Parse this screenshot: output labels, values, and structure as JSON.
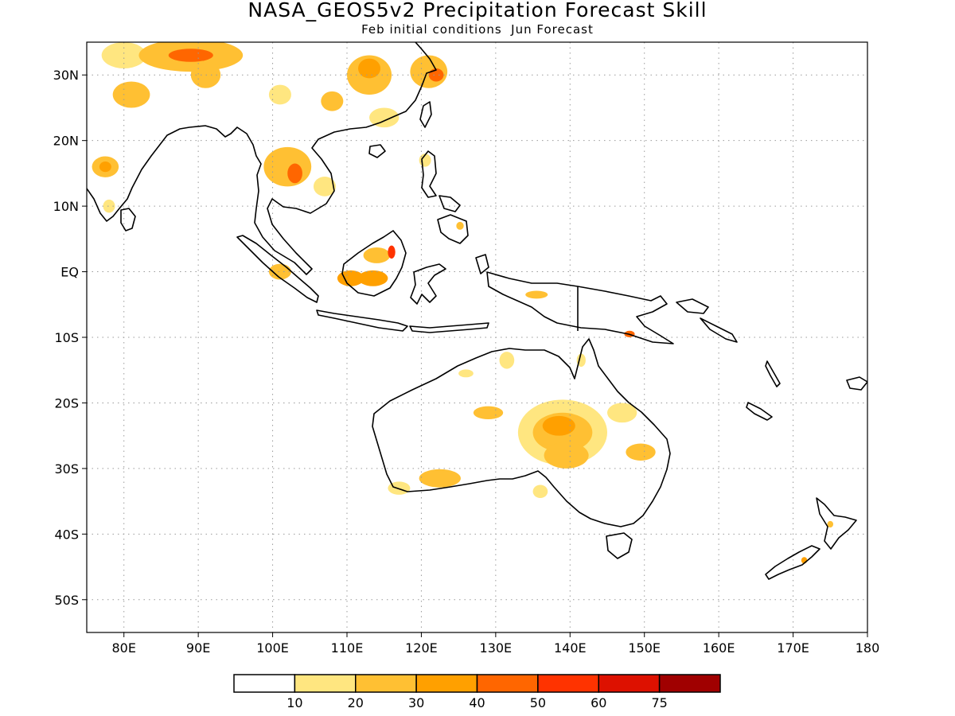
{
  "title": "NASA_GEOS5v2 Precipitation Forecast Skill",
  "subtitle": "Feb initial conditions  Jun Forecast",
  "map": {
    "lon_range": [
      75,
      180
    ],
    "lat_range": [
      -55,
      35
    ],
    "lat_ticks": [
      {
        "value": 30,
        "label": "30N"
      },
      {
        "value": 20,
        "label": "20N"
      },
      {
        "value": 10,
        "label": "10N"
      },
      {
        "value": 0,
        "label": "EQ"
      },
      {
        "value": -10,
        "label": "10S"
      },
      {
        "value": -20,
        "label": "20S"
      },
      {
        "value": -30,
        "label": "30S"
      },
      {
        "value": -40,
        "label": "40S"
      },
      {
        "value": -50,
        "label": "50S"
      }
    ],
    "lon_ticks": [
      {
        "value": 80,
        "label": "80E"
      },
      {
        "value": 90,
        "label": "90E"
      },
      {
        "value": 100,
        "label": "100E"
      },
      {
        "value": 110,
        "label": "110E"
      },
      {
        "value": 120,
        "label": "120E"
      },
      {
        "value": 130,
        "label": "130E"
      },
      {
        "value": 140,
        "label": "140E"
      },
      {
        "value": 150,
        "label": "150E"
      },
      {
        "value": 160,
        "label": "160E"
      },
      {
        "value": 170,
        "label": "170E"
      },
      {
        "value": 180,
        "label": "180"
      }
    ],
    "grid": true,
    "skill_regions": [
      {
        "lon": 89,
        "lat": 33,
        "level": 2,
        "rx": 7,
        "ry": 2.5
      },
      {
        "lon": 89,
        "lat": 33,
        "level": 4,
        "rx": 3,
        "ry": 1
      },
      {
        "lon": 80,
        "lat": 33,
        "level": 1,
        "rx": 3,
        "ry": 2
      },
      {
        "lon": 81,
        "lat": 27,
        "level": 2,
        "rx": 2.5,
        "ry": 2
      },
      {
        "lon": 91,
        "lat": 30,
        "level": 2,
        "rx": 2,
        "ry": 2
      },
      {
        "lon": 101,
        "lat": 27,
        "level": 1,
        "rx": 1.5,
        "ry": 1.5
      },
      {
        "lon": 108,
        "lat": 26,
        "level": 2,
        "rx": 1.5,
        "ry": 1.5
      },
      {
        "lon": 113,
        "lat": 30,
        "level": 2,
        "rx": 3,
        "ry": 3
      },
      {
        "lon": 113,
        "lat": 31,
        "level": 3,
        "rx": 1.5,
        "ry": 1.5
      },
      {
        "lon": 121,
        "lat": 30.5,
        "level": 2,
        "rx": 2.5,
        "ry": 2.5
      },
      {
        "lon": 122,
        "lat": 30,
        "level": 4,
        "rx": 1,
        "ry": 1
      },
      {
        "lon": 115,
        "lat": 23.5,
        "level": 1,
        "rx": 2,
        "ry": 1.5
      },
      {
        "lon": 77.5,
        "lat": 16,
        "level": 2,
        "rx": 1.8,
        "ry": 1.6
      },
      {
        "lon": 77.5,
        "lat": 16,
        "level": 3,
        "rx": 0.8,
        "ry": 0.8
      },
      {
        "lon": 78,
        "lat": 10,
        "level": 1,
        "rx": 0.8,
        "ry": 1
      },
      {
        "lon": 102,
        "lat": 16,
        "level": 2,
        "rx": 3.2,
        "ry": 3
      },
      {
        "lon": 103,
        "lat": 15,
        "level": 4,
        "rx": 1,
        "ry": 1.5
      },
      {
        "lon": 107,
        "lat": 13,
        "level": 1,
        "rx": 1.5,
        "ry": 1.5
      },
      {
        "lon": 120.5,
        "lat": 17,
        "level": 1,
        "rx": 0.8,
        "ry": 1
      },
      {
        "lon": 125.2,
        "lat": 7,
        "level": 2,
        "rx": 0.5,
        "ry": 0.6
      },
      {
        "lon": 101,
        "lat": 0,
        "level": 2,
        "rx": 1.5,
        "ry": 1.2
      },
      {
        "lon": 110.5,
        "lat": -1,
        "level": 3,
        "rx": 1.8,
        "ry": 1.2
      },
      {
        "lon": 113.5,
        "lat": -1,
        "level": 3,
        "rx": 2,
        "ry": 1.2
      },
      {
        "lon": 114,
        "lat": 2.5,
        "level": 2,
        "rx": 1.8,
        "ry": 1.2
      },
      {
        "lon": 116,
        "lat": 3,
        "level": 5,
        "rx": 0.5,
        "ry": 1
      },
      {
        "lon": 135.5,
        "lat": -3.5,
        "level": 2,
        "rx": 1.5,
        "ry": 0.6
      },
      {
        "lon": 148,
        "lat": -9.5,
        "level": 4,
        "rx": 0.7,
        "ry": 0.5
      },
      {
        "lon": 131.5,
        "lat": -13.5,
        "level": 1,
        "rx": 1,
        "ry": 1.3
      },
      {
        "lon": 126,
        "lat": -15.5,
        "level": 1,
        "rx": 1,
        "ry": 0.6
      },
      {
        "lon": 141.5,
        "lat": -13.5,
        "level": 1,
        "rx": 0.6,
        "ry": 1
      },
      {
        "lon": 139,
        "lat": -24.5,
        "level": 1,
        "rx": 6,
        "ry": 5
      },
      {
        "lon": 139,
        "lat": -24.5,
        "level": 2,
        "rx": 4,
        "ry": 3
      },
      {
        "lon": 138.5,
        "lat": -23.5,
        "level": 3,
        "rx": 2.2,
        "ry": 1.5
      },
      {
        "lon": 139.5,
        "lat": -28,
        "level": 2,
        "rx": 3,
        "ry": 2
      },
      {
        "lon": 129,
        "lat": -21.5,
        "level": 2,
        "rx": 2,
        "ry": 1
      },
      {
        "lon": 147,
        "lat": -21.5,
        "level": 1,
        "rx": 2,
        "ry": 1.5
      },
      {
        "lon": 149.5,
        "lat": -27.5,
        "level": 2,
        "rx": 2,
        "ry": 1.3
      },
      {
        "lon": 122.5,
        "lat": -31.5,
        "level": 2,
        "rx": 2.8,
        "ry": 1.4
      },
      {
        "lon": 117,
        "lat": -33,
        "level": 1,
        "rx": 1.5,
        "ry": 1
      },
      {
        "lon": 136,
        "lat": -33.5,
        "level": 1,
        "rx": 1,
        "ry": 1
      },
      {
        "lon": 175,
        "lat": -38.5,
        "level": 2,
        "rx": 0.4,
        "ry": 0.5
      },
      {
        "lon": 171.5,
        "lat": -44,
        "level": 3,
        "rx": 0.4,
        "ry": 0.5
      }
    ]
  },
  "colorbar": {
    "colors": [
      "#ffffff",
      "#ffe680",
      "#ffc033",
      "#ffa000",
      "#ff6600",
      "#ff3300",
      "#dd1100",
      "#a00000"
    ],
    "labels": [
      "10",
      "20",
      "30",
      "40",
      "50",
      "60",
      "75"
    ]
  }
}
